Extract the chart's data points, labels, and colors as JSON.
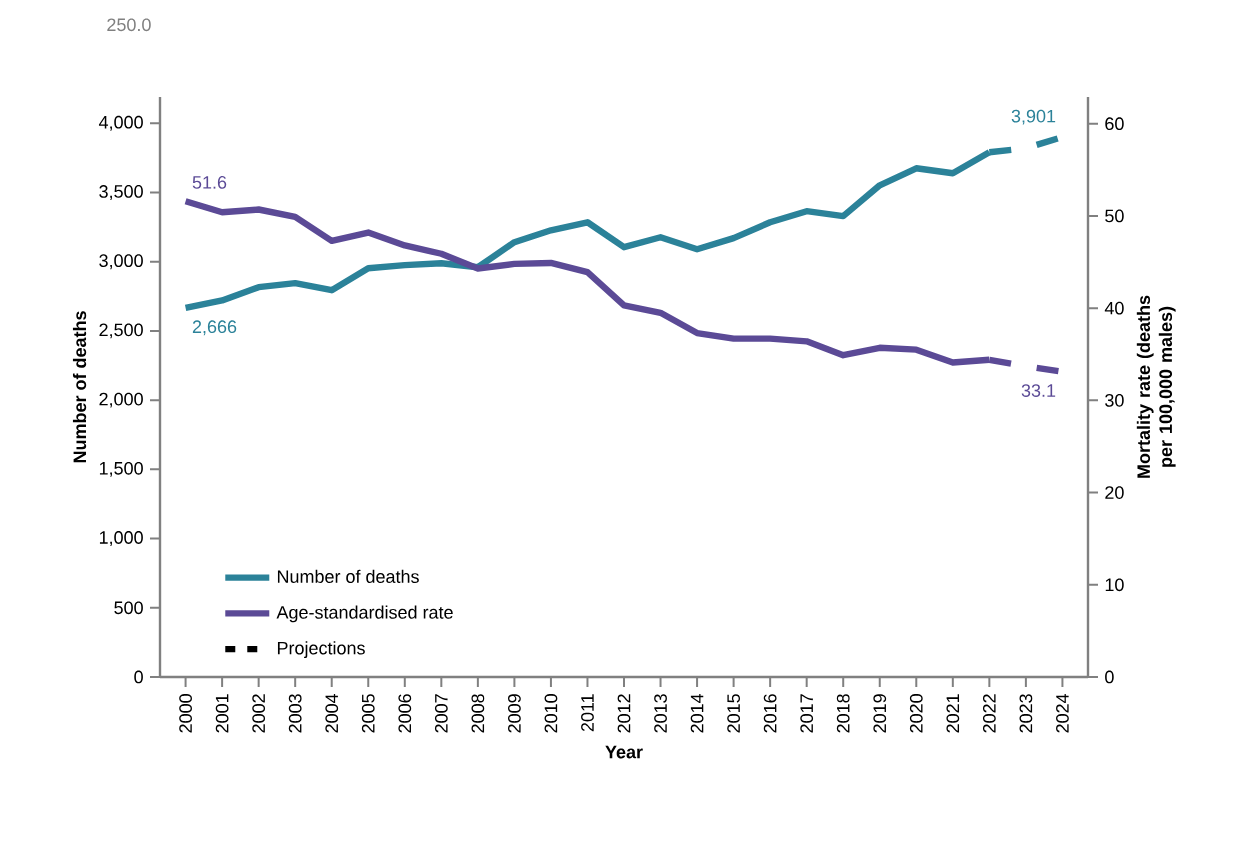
{
  "chart_data": {
    "type": "line",
    "categories": [
      "2000",
      "2001",
      "2002",
      "2003",
      "2004",
      "2005",
      "2006",
      "2007",
      "2008",
      "2009",
      "2010",
      "2011",
      "2012",
      "2013",
      "2014",
      "2015",
      "2016",
      "2017",
      "2018",
      "2019",
      "2020",
      "2021",
      "2022",
      "2023",
      "2024"
    ],
    "series": [
      {
        "name": "Number of deaths",
        "color": "#2b8299",
        "axis": "y",
        "line_style": "solid",
        "values": [
          2666,
          2720,
          2816,
          2845,
          2794,
          2953,
          2975,
          2989,
          2960,
          3141,
          3227,
          3285,
          3105,
          3177,
          3090,
          3170,
          3285,
          3365,
          3329,
          3552,
          3675,
          3639,
          3791,
          null,
          null
        ],
        "value_labels": [
          "2,666",
          null,
          null,
          null,
          null,
          null,
          null,
          null,
          null,
          null,
          null,
          null,
          null,
          null,
          null,
          null,
          null,
          null,
          null,
          null,
          null,
          null,
          null,
          null,
          null
        ]
      },
      {
        "name": "Age-standardised rate",
        "color": "#5b4a96",
        "axis": "y2",
        "line_style": "solid",
        "values": [
          51.6,
          50.4,
          50.7,
          49.9,
          47.3,
          48.2,
          46.8,
          45.9,
          44.3,
          44.8,
          44.9,
          43.9,
          40.3,
          39.5,
          37.3,
          36.7,
          36.7,
          36.4,
          34.9,
          35.7,
          35.5,
          34.1,
          34.4,
          null,
          null
        ],
        "value_labels": [
          "51.6",
          null,
          null,
          null,
          null,
          null,
          null,
          null,
          null,
          null,
          null,
          null,
          null,
          null,
          null,
          null,
          null,
          null,
          null,
          null,
          null,
          null,
          null,
          null,
          null
        ]
      },
      {
        "color": "#2b8299",
        "axis": "y",
        "line_style": "dashed",
        "values": [
          null,
          null,
          null,
          null,
          null,
          null,
          null,
          null,
          null,
          null,
          null,
          null,
          null,
          null,
          null,
          null,
          null,
          null,
          null,
          null,
          null,
          null,
          3791,
          3820,
          3901
        ],
        "value_labels": [
          null,
          null,
          null,
          null,
          null,
          null,
          null,
          null,
          null,
          null,
          null,
          null,
          null,
          null,
          null,
          null,
          null,
          null,
          null,
          null,
          null,
          null,
          null,
          null,
          "3,901"
        ]
      },
      {
        "color": "#5b4a96",
        "axis": "y2",
        "line_style": "dashed",
        "values": [
          null,
          null,
          null,
          null,
          null,
          null,
          null,
          null,
          null,
          null,
          null,
          null,
          null,
          null,
          null,
          null,
          null,
          null,
          null,
          null,
          null,
          null,
          34.4,
          33.7,
          33.1
        ],
        "value_labels": [
          null,
          null,
          null,
          null,
          null,
          null,
          null,
          null,
          null,
          null,
          null,
          null,
          null,
          null,
          null,
          null,
          null,
          null,
          null,
          null,
          null,
          null,
          null,
          null,
          "33.1"
        ]
      },
      {
        "name": "Projections",
        "color": "#000000",
        "axis": "y",
        "line_style": "dashed",
        "values": [
          null,
          null,
          null,
          null,
          null,
          null,
          null,
          null,
          null,
          null,
          null,
          null,
          null,
          null,
          null,
          null,
          null,
          null,
          null,
          null,
          null,
          null,
          null,
          null,
          null
        ]
      }
    ],
    "xlabel": "Year",
    "ylabel": "Number of deaths",
    "y2label": "Mortality rate (deaths per 100,000 males)",
    "ylim": [
      0,
      4190
    ],
    "yticks": [
      0,
      500,
      {
        "value": 1000,
        "label": "1,000"
      },
      {
        "value": 1500,
        "label": "1,500"
      },
      {
        "value": 2000,
        "label": "2,000"
      },
      {
        "value": 2500,
        "label": "2,500"
      },
      {
        "value": 3000,
        "label": "3,000"
      },
      {
        "value": 3500,
        "label": "3,500"
      },
      {
        "value": 4000,
        "label": "4,000"
      }
    ],
    "y2lim": [
      0,
      62.9
    ],
    "y2ticks": [
      0,
      10,
      20,
      30,
      40,
      50,
      60
    ],
    "grid": false,
    "legend": "bottom left",
    "annotations": [
      "250.0"
    ]
  }
}
